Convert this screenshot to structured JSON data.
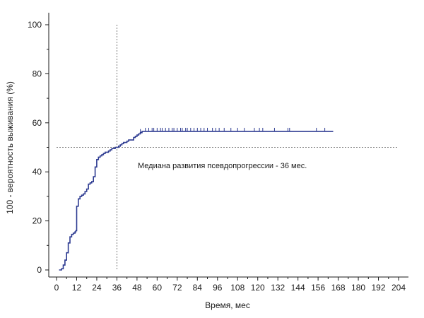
{
  "chart_data": {
    "type": "line",
    "xlabel": "Время, мес",
    "ylabel": "100 - вероятность выживания (%)",
    "xlim": [
      0,
      204
    ],
    "ylim": [
      0,
      100
    ],
    "x_ticks": [
      0,
      12,
      24,
      36,
      48,
      60,
      72,
      84,
      96,
      108,
      120,
      132,
      144,
      156,
      168,
      180,
      192,
      204
    ],
    "y_ticks": [
      0,
      20,
      40,
      60,
      80,
      100
    ],
    "grid": false,
    "annotation": "Медиана развития псевдопрогрессии - 36 мес.",
    "reference_lines": {
      "horizontal_y": 50,
      "vertical_x": 36
    },
    "colors": {
      "series": "#2b3990",
      "reference": "#555555",
      "axis": "#1a1a1a"
    },
    "series": [
      {
        "x": [
          1.5,
          3,
          4,
          5,
          6,
          7,
          8,
          9,
          10,
          11,
          11.5,
          12,
          13,
          14,
          15,
          16,
          17,
          18,
          19,
          20,
          21,
          22,
          23,
          24,
          25,
          26,
          27,
          28,
          29,
          30,
          31,
          32,
          33,
          34,
          35,
          36,
          37,
          38,
          39,
          40,
          41,
          42,
          43,
          44,
          45,
          46,
          47,
          48,
          49,
          50,
          51,
          52,
          53,
          60,
          80,
          100,
          120,
          140,
          160,
          165
        ],
        "y": [
          0,
          0.5,
          2,
          4,
          7,
          11,
          13.5,
          14.5,
          15,
          15.5,
          16,
          26,
          29,
          30,
          30.5,
          31,
          32,
          33,
          35,
          35.5,
          36,
          38,
          42,
          45,
          46,
          46.5,
          47,
          47.5,
          48,
          48,
          48.5,
          49,
          49.5,
          49.5,
          50,
          50,
          50.5,
          51,
          51.5,
          52,
          52,
          52.5,
          53,
          53,
          53,
          54,
          54.5,
          55,
          55.5,
          56,
          56.5,
          56.5,
          56.5,
          56.5,
          56.5,
          56.5,
          56.5,
          56.5,
          56.5,
          56.5
        ]
      }
    ],
    "censor_x": [
      50,
      53,
      55,
      57,
      58,
      60,
      62,
      63,
      65,
      67,
      69,
      70,
      72,
      74,
      75,
      77,
      78,
      80,
      82,
      84,
      86,
      88,
      90,
      93,
      95,
      97,
      100,
      104,
      108,
      112,
      118,
      121,
      123,
      130,
      138,
      139,
      155,
      160
    ]
  }
}
